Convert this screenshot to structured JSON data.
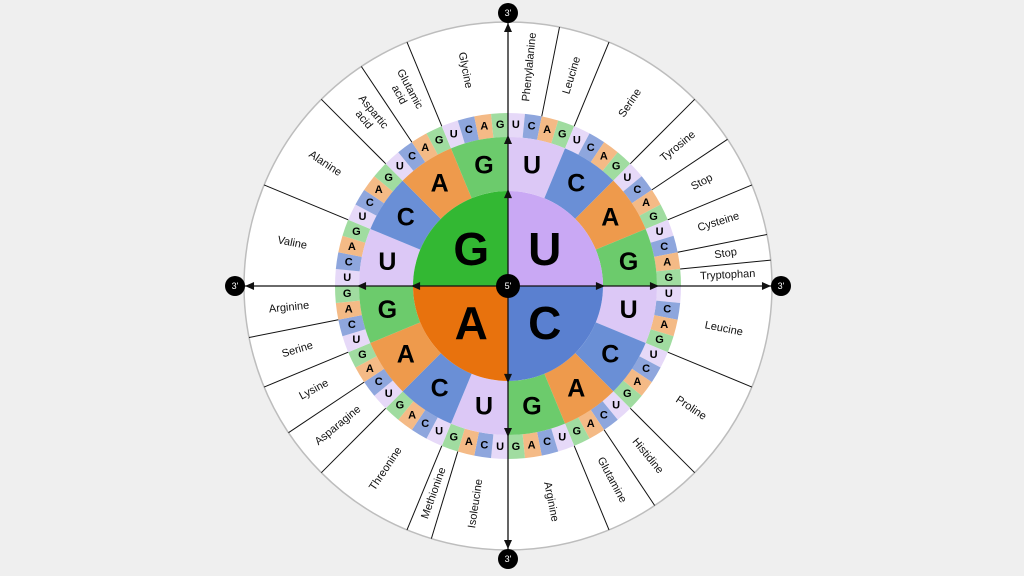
{
  "bases": [
    "U",
    "C",
    "A",
    "G"
  ],
  "colors": {
    "inner": {
      "U": "#c9a8f4",
      "C": "#5a80d0",
      "A": "#e8720d",
      "G": "#33b833"
    },
    "middle": {
      "U": "#dcc8f6",
      "C": "#6a8fd6",
      "A": "#ee9a4c",
      "G": "#6ccb6c"
    },
    "outer": {
      "U": "#e6d9f8",
      "C": "#8ea6dd",
      "A": "#f4ba86",
      "G": "#a0dca0"
    },
    "background": "#efefef"
  },
  "center_label": "5'",
  "end_label": "3'",
  "amino_acids": [
    {
      "name": "Phenylalanine",
      "codons": 2
    },
    {
      "name": "Leucine",
      "codons": 2
    },
    {
      "name": "Serine",
      "codons": 4
    },
    {
      "name": "Tyrosine",
      "codons": 2
    },
    {
      "name": "Stop",
      "codons": 2
    },
    {
      "name": "Cysteine",
      "codons": 2
    },
    {
      "name": "Stop",
      "codons": 1
    },
    {
      "name": "Tryptophan",
      "codons": 1
    },
    {
      "name": "Leucine",
      "codons": 4
    },
    {
      "name": "Proline",
      "codons": 4
    },
    {
      "name": "Histidine",
      "codons": 2
    },
    {
      "name": "Glutamine",
      "codons": 2
    },
    {
      "name": "Arginine",
      "codons": 4
    },
    {
      "name": "Isoleucine",
      "codons": 3
    },
    {
      "name": "Methionine",
      "codons": 1
    },
    {
      "name": "Threonine",
      "codons": 4
    },
    {
      "name": "Asparagine",
      "codons": 2
    },
    {
      "name": "Lysine",
      "codons": 2
    },
    {
      "name": "Serine",
      "codons": 2
    },
    {
      "name": "Arginine",
      "codons": 2
    },
    {
      "name": "Valine",
      "codons": 4
    },
    {
      "name": "Alanine",
      "codons": 4
    },
    {
      "name": "Aspartic acid",
      "codons": 2
    },
    {
      "name": "Glutamic acid",
      "codons": 2
    },
    {
      "name": "Glycine",
      "codons": 4
    }
  ]
}
